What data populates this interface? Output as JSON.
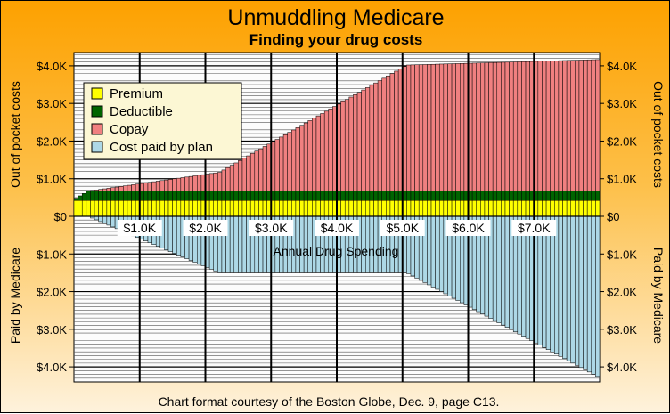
{
  "chart_data": {
    "type": "area",
    "title": "Unmuddling Medicare",
    "subtitle": "Finding your drug costs",
    "xlabel": "Annual Drug Spending",
    "ylabel_top": "Out of pocket costs",
    "ylabel_bottom": "Paid by Medicare",
    "footer": "Chart format courtesy of the Boston Globe, Dec. 9, page C13.",
    "x_tick_labels": [
      "$1.0K",
      "$2.0K",
      "$3.0K",
      "$4.0K",
      "$5.0K",
      "$6.0K",
      "$7.0K"
    ],
    "x_tick_values": [
      1000,
      2000,
      3000,
      4000,
      5000,
      6000,
      7000
    ],
    "y_tick_labels_top": [
      "$0",
      "$1.0K",
      "$2.0K",
      "$3.0K",
      "$4.0K"
    ],
    "y_tick_labels_bottom": [
      "$1.0K",
      "$2.0K",
      "$3.0K",
      "$4.0K"
    ],
    "xlim": [
      0,
      8000
    ],
    "ylim": [
      -4400,
      4400
    ],
    "legend_position": "top-left",
    "grid": true,
    "series": [
      {
        "name": "Premium",
        "color": "#ffff00"
      },
      {
        "name": "Deductible",
        "color": "#006400"
      },
      {
        "name": "Copay",
        "color": "#f08080"
      },
      {
        "name": "Cost paid by plan",
        "color": "#add8e6"
      }
    ],
    "premium": 420,
    "deductible_cap": 250,
    "plan_share_initial": 0.75,
    "initial_limit": 2250,
    "catastrophic_threshold": 5100,
    "copay_catastrophic_rate": 0.05,
    "x_step": 62.5
  }
}
